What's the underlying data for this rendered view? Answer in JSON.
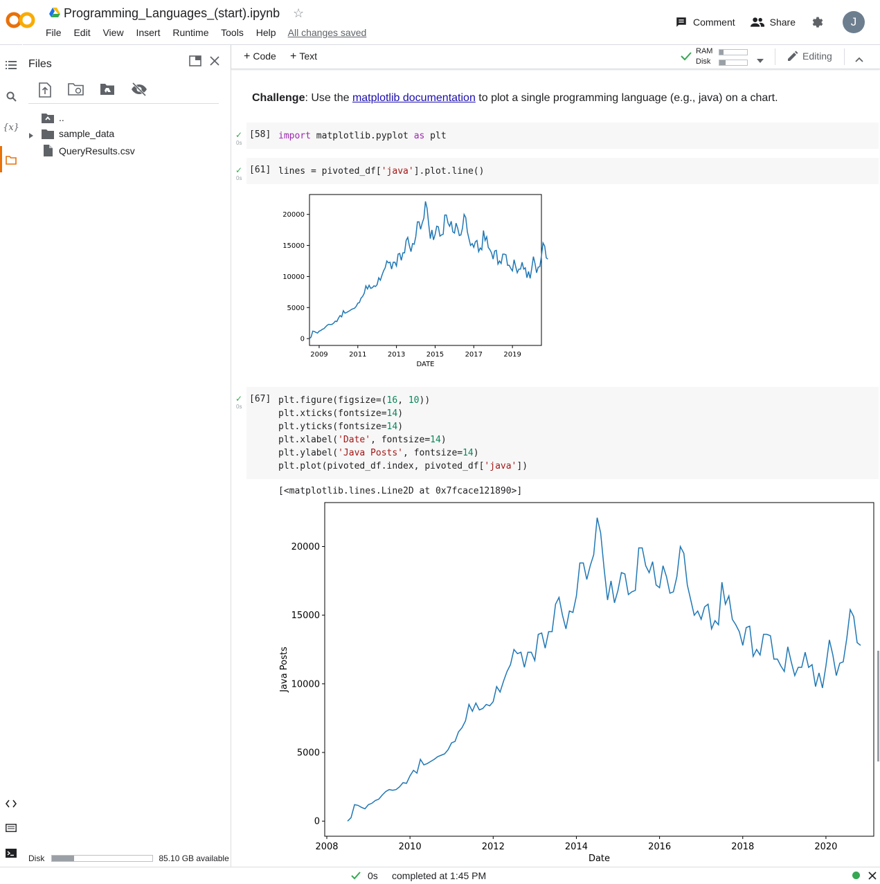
{
  "header": {
    "title": "Programming_Languages_(start).ipynb",
    "menu": [
      "File",
      "Edit",
      "View",
      "Insert",
      "Runtime",
      "Tools",
      "Help"
    ],
    "saved_status": "All changes saved",
    "comment_label": "Comment",
    "share_label": "Share",
    "avatar_letter": "J"
  },
  "files_panel": {
    "title": "Files",
    "tree": [
      {
        "name": ".."
      },
      {
        "name": "sample_data"
      },
      {
        "name": "QueryResults.csv"
      }
    ],
    "disk_label": "Disk",
    "disk_available": "85.10 GB available",
    "disk_fraction_used": 0.22
  },
  "toolbar": {
    "code_label": "Code",
    "text_label": "Text",
    "ram_label": "RAM",
    "disk_label": "Disk",
    "editing_label": "Editing"
  },
  "notebook": {
    "challenge_bold": "Challenge",
    "challenge_pre": ": Use the ",
    "challenge_link": "matplotlib documentation",
    "challenge_post": " to plot a single programming language (e.g., java) on a chart.",
    "cells": [
      {
        "num": "[58]",
        "time": "0s"
      },
      {
        "num": "[61]",
        "time": "0s"
      },
      {
        "num": "[67]",
        "time": "0s"
      }
    ],
    "output_text": "[<matplotlib.lines.Line2D at 0x7fcace121890>]"
  },
  "status": {
    "time": "0s",
    "completed": "completed at 1:45 PM"
  },
  "chart_data": [
    {
      "type": "line",
      "title": "",
      "xlabel": "DATE",
      "ylabel": "",
      "xticks": [
        "2009",
        "2011",
        "2013",
        "2015",
        "2017",
        "2019"
      ],
      "yticks": [
        "0",
        "5000",
        "10000",
        "15000",
        "20000"
      ],
      "xlim": [
        2008.5,
        2020.5
      ],
      "ylim": [
        -1100,
        23200
      ],
      "series": [
        {
          "values_ref": "java"
        }
      ]
    },
    {
      "type": "line",
      "title": "",
      "xlabel": "Date",
      "ylabel": "Java Posts",
      "xticks": [
        "2008",
        "2010",
        "2012",
        "2014",
        "2016",
        "2018",
        "2020"
      ],
      "yticks": [
        "0",
        "5000",
        "10000",
        "15000",
        "20000"
      ],
      "xlim": [
        2007.95,
        2021.15
      ],
      "ylim": [
        -1100,
        23200
      ],
      "series": [
        {
          "values_ref": "java"
        }
      ]
    }
  ],
  "java_series": {
    "x_start": "2008-07",
    "frequency": "monthly",
    "values": [
      0,
      250,
      1200,
      1150,
      1000,
      900,
      1200,
      1300,
      1500,
      1600,
      1900,
      2150,
      2300,
      2250,
      2300,
      2500,
      2800,
      2750,
      3300,
      3700,
      3500,
      4500,
      4100,
      4200,
      4350,
      4500,
      4700,
      4800,
      4900,
      5200,
      5700,
      5800,
      6500,
      6800,
      7300,
      8500,
      8000,
      8600,
      8100,
      8200,
      8500,
      8400,
      8700,
      9800,
      9400,
      10200,
      10900,
      11400,
      12500,
      12200,
      12300,
      11200,
      12300,
      12300,
      11700,
      13600,
      13700,
      12600,
      13800,
      13800,
      15800,
      16300,
      15000,
      14000,
      15300,
      15200,
      16400,
      18800,
      18800,
      17600,
      18600,
      19400,
      22100,
      21000,
      18400,
      16100,
      17500,
      15900,
      16800,
      18100,
      18000,
      16500,
      16700,
      16800,
      19900,
      19900,
      18600,
      18100,
      18900,
      17200,
      17000,
      18600,
      17800,
      16600,
      16700,
      17800,
      20000,
      19500,
      17200,
      16100,
      15000,
      15300,
      14700,
      15600,
      15800,
      14000,
      14600,
      14300,
      17400,
      15800,
      16400,
      14700,
      14300,
      13800,
      12800,
      14100,
      14200,
      12000,
      12500,
      12100,
      13600,
      13600,
      13500,
      11800,
      11800,
      11300,
      10900,
      12700,
      11600,
      10600,
      11200,
      11200,
      12300,
      11200,
      11400,
      9800,
      10800,
      9700,
      11300,
      13200,
      12100,
      10600,
      11500,
      11600,
      13300,
      15400,
      14900,
      13000,
      12800
    ]
  }
}
